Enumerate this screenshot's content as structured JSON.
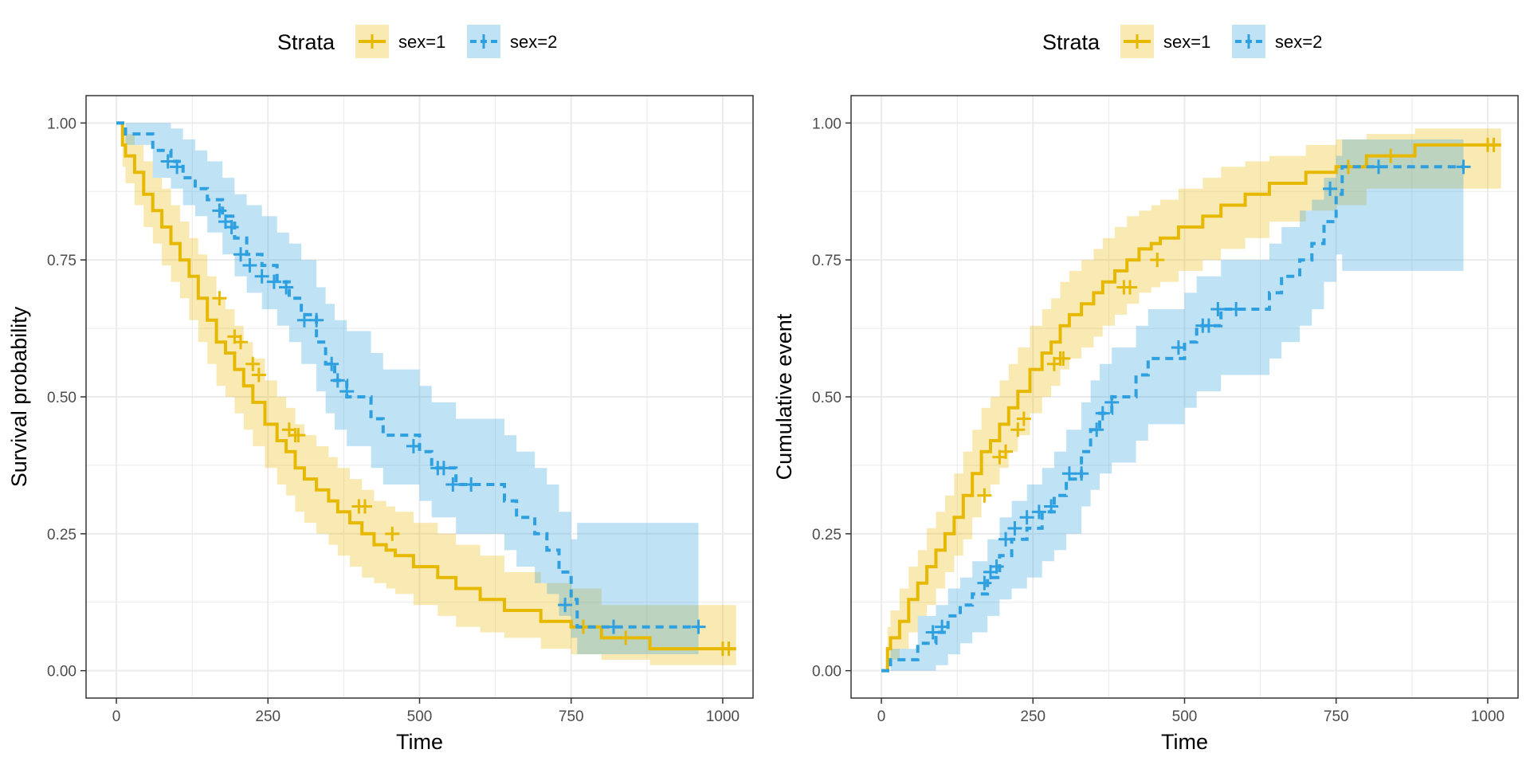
{
  "colors": {
    "sex1": "#E7B800",
    "sex2": "#2E9FDF",
    "grid": "#ebebeb",
    "panel_border": "#333333",
    "tick_text": "#4d4d4d"
  },
  "chart_data": [
    {
      "type": "line",
      "step": true,
      "xlabel": "Time",
      "ylabel": "Survival probability",
      "xlim": [
        -50,
        1050
      ],
      "ylim": [
        -0.05,
        1.05
      ],
      "x_ticks": [
        0,
        250,
        500,
        750,
        1000
      ],
      "x_tick_labels": [
        "0",
        "250",
        "500",
        "750",
        "1000"
      ],
      "y_ticks": [
        0,
        0.25,
        0.5,
        0.75,
        1
      ],
      "y_tick_labels": [
        "0.00",
        "0.25",
        "0.50",
        "0.75",
        "1.00"
      ],
      "grid": true,
      "legend": {
        "title": "Strata",
        "position": "top",
        "entries": [
          "sex=1",
          "sex=2"
        ]
      },
      "series": [
        {
          "name": "sex=1",
          "linestyle": "solid",
          "color": "#E7B800",
          "x": [
            0,
            10,
            15,
            30,
            45,
            60,
            75,
            90,
            105,
            120,
            135,
            150,
            165,
            180,
            195,
            210,
            225,
            245,
            265,
            280,
            295,
            310,
            330,
            350,
            365,
            385,
            405,
            425,
            445,
            460,
            490,
            530,
            560,
            600,
            640,
            700,
            750,
            800,
            880,
            950,
            1022
          ],
          "y": [
            1.0,
            0.96,
            0.94,
            0.91,
            0.87,
            0.84,
            0.81,
            0.78,
            0.75,
            0.72,
            0.68,
            0.64,
            0.6,
            0.58,
            0.55,
            0.52,
            0.49,
            0.45,
            0.42,
            0.4,
            0.37,
            0.35,
            0.33,
            0.31,
            0.29,
            0.27,
            0.25,
            0.23,
            0.22,
            0.21,
            0.19,
            0.17,
            0.15,
            0.13,
            0.11,
            0.09,
            0.08,
            0.06,
            0.04,
            0.04,
            0.04
          ],
          "lower": [
            1.0,
            0.92,
            0.89,
            0.85,
            0.81,
            0.78,
            0.74,
            0.71,
            0.68,
            0.64,
            0.6,
            0.56,
            0.52,
            0.5,
            0.47,
            0.44,
            0.41,
            0.37,
            0.34,
            0.32,
            0.29,
            0.27,
            0.25,
            0.23,
            0.21,
            0.19,
            0.17,
            0.16,
            0.15,
            0.14,
            0.12,
            0.1,
            0.08,
            0.07,
            0.06,
            0.04,
            0.03,
            0.02,
            0.01,
            0.01,
            0.01
          ],
          "upper": [
            1.0,
            0.99,
            0.98,
            0.96,
            0.93,
            0.9,
            0.88,
            0.85,
            0.82,
            0.79,
            0.76,
            0.72,
            0.68,
            0.66,
            0.63,
            0.6,
            0.57,
            0.53,
            0.5,
            0.48,
            0.45,
            0.43,
            0.41,
            0.39,
            0.37,
            0.35,
            0.33,
            0.31,
            0.3,
            0.29,
            0.27,
            0.25,
            0.23,
            0.21,
            0.18,
            0.16,
            0.15,
            0.12,
            0.12,
            0.12,
            0.12
          ],
          "censored_x": [
            170,
            195,
            205,
            225,
            235,
            285,
            295,
            300,
            400,
            410,
            455,
            770,
            840,
            1000,
            1010
          ],
          "censored_y": [
            0.68,
            0.61,
            0.6,
            0.56,
            0.54,
            0.44,
            0.43,
            0.43,
            0.3,
            0.3,
            0.25,
            0.08,
            0.06,
            0.04,
            0.04
          ]
        },
        {
          "name": "sex=2",
          "linestyle": "dashed",
          "color": "#2E9FDF",
          "x": [
            0,
            15,
            60,
            90,
            110,
            130,
            150,
            175,
            195,
            215,
            240,
            265,
            285,
            305,
            330,
            345,
            360,
            380,
            420,
            440,
            500,
            520,
            560,
            640,
            660,
            690,
            710,
            730,
            750,
            760,
            960
          ],
          "y": [
            1.0,
            0.98,
            0.95,
            0.93,
            0.9,
            0.88,
            0.86,
            0.83,
            0.79,
            0.76,
            0.74,
            0.71,
            0.68,
            0.65,
            0.6,
            0.56,
            0.53,
            0.5,
            0.46,
            0.43,
            0.4,
            0.37,
            0.34,
            0.31,
            0.28,
            0.25,
            0.22,
            0.18,
            0.13,
            0.08,
            0.08
          ],
          "lower": [
            1.0,
            0.96,
            0.9,
            0.88,
            0.85,
            0.83,
            0.8,
            0.76,
            0.72,
            0.69,
            0.66,
            0.63,
            0.6,
            0.56,
            0.51,
            0.47,
            0.44,
            0.41,
            0.37,
            0.34,
            0.31,
            0.28,
            0.25,
            0.22,
            0.19,
            0.16,
            0.14,
            0.1,
            0.06,
            0.03,
            0.03
          ],
          "upper": [
            1.0,
            1.0,
            1.0,
            0.99,
            0.97,
            0.95,
            0.93,
            0.9,
            0.87,
            0.85,
            0.83,
            0.8,
            0.78,
            0.75,
            0.7,
            0.67,
            0.64,
            0.62,
            0.58,
            0.55,
            0.52,
            0.49,
            0.46,
            0.43,
            0.4,
            0.37,
            0.34,
            0.29,
            0.24,
            0.27,
            0.27
          ],
          "censored_x": [
            85,
            100,
            170,
            180,
            190,
            205,
            220,
            240,
            260,
            280,
            310,
            330,
            355,
            365,
            380,
            490,
            530,
            540,
            555,
            585,
            740,
            820,
            960
          ],
          "censored_y": [
            0.93,
            0.92,
            0.84,
            0.82,
            0.81,
            0.76,
            0.74,
            0.72,
            0.71,
            0.7,
            0.64,
            0.64,
            0.56,
            0.53,
            0.51,
            0.41,
            0.37,
            0.37,
            0.34,
            0.34,
            0.12,
            0.08,
            0.08
          ]
        }
      ]
    },
    {
      "type": "line",
      "step": true,
      "xlabel": "Time",
      "ylabel": "Cumulative event",
      "xlim": [
        -50,
        1050
      ],
      "ylim": [
        -0.05,
        1.05
      ],
      "x_ticks": [
        0,
        250,
        500,
        750,
        1000
      ],
      "x_tick_labels": [
        "0",
        "250",
        "500",
        "750",
        "1000"
      ],
      "y_ticks": [
        0,
        0.25,
        0.5,
        0.75,
        1
      ],
      "y_tick_labels": [
        "0.00",
        "0.25",
        "0.50",
        "0.75",
        "1.00"
      ],
      "grid": true,
      "legend": {
        "title": "Strata",
        "position": "top",
        "entries": [
          "sex=1",
          "sex=2"
        ]
      },
      "series": [
        {
          "name": "sex=1",
          "linestyle": "solid",
          "color": "#E7B800",
          "x": [
            0,
            10,
            15,
            30,
            45,
            60,
            75,
            90,
            105,
            120,
            135,
            150,
            165,
            180,
            195,
            210,
            225,
            245,
            265,
            280,
            295,
            310,
            330,
            350,
            365,
            385,
            405,
            425,
            445,
            460,
            490,
            530,
            560,
            600,
            640,
            700,
            750,
            800,
            880,
            950,
            1022
          ],
          "y": [
            0.0,
            0.04,
            0.06,
            0.09,
            0.13,
            0.16,
            0.19,
            0.22,
            0.25,
            0.28,
            0.32,
            0.36,
            0.4,
            0.42,
            0.45,
            0.48,
            0.51,
            0.55,
            0.58,
            0.6,
            0.63,
            0.65,
            0.67,
            0.69,
            0.71,
            0.73,
            0.75,
            0.77,
            0.78,
            0.79,
            0.81,
            0.83,
            0.85,
            0.87,
            0.89,
            0.91,
            0.92,
            0.94,
            0.96,
            0.96,
            0.96
          ],
          "lower": [
            0.0,
            0.01,
            0.02,
            0.04,
            0.07,
            0.1,
            0.12,
            0.15,
            0.18,
            0.21,
            0.24,
            0.28,
            0.32,
            0.34,
            0.37,
            0.4,
            0.43,
            0.47,
            0.5,
            0.52,
            0.55,
            0.57,
            0.59,
            0.61,
            0.63,
            0.65,
            0.67,
            0.69,
            0.7,
            0.71,
            0.73,
            0.75,
            0.77,
            0.79,
            0.82,
            0.84,
            0.85,
            0.88,
            0.88,
            0.88,
            0.88
          ],
          "upper": [
            0.0,
            0.08,
            0.11,
            0.15,
            0.19,
            0.22,
            0.26,
            0.29,
            0.32,
            0.36,
            0.4,
            0.44,
            0.48,
            0.5,
            0.53,
            0.56,
            0.59,
            0.63,
            0.66,
            0.68,
            0.71,
            0.73,
            0.75,
            0.77,
            0.79,
            0.81,
            0.83,
            0.84,
            0.85,
            0.86,
            0.88,
            0.9,
            0.92,
            0.93,
            0.94,
            0.96,
            0.97,
            0.98,
            0.99,
            0.99,
            0.99
          ],
          "censored_x": [
            170,
            195,
            205,
            225,
            235,
            285,
            295,
            300,
            400,
            410,
            455,
            770,
            840,
            1000,
            1010
          ],
          "censored_y": [
            0.32,
            0.39,
            0.4,
            0.44,
            0.46,
            0.56,
            0.57,
            0.57,
            0.7,
            0.7,
            0.75,
            0.92,
            0.94,
            0.96,
            0.96
          ]
        },
        {
          "name": "sex=2",
          "linestyle": "dashed",
          "color": "#2E9FDF",
          "x": [
            0,
            15,
            60,
            90,
            110,
            130,
            150,
            175,
            195,
            215,
            240,
            265,
            285,
            305,
            330,
            345,
            360,
            380,
            420,
            440,
            500,
            520,
            560,
            640,
            660,
            690,
            710,
            730,
            750,
            760,
            960
          ],
          "y": [
            0.0,
            0.02,
            0.05,
            0.07,
            0.1,
            0.12,
            0.14,
            0.17,
            0.21,
            0.24,
            0.26,
            0.29,
            0.32,
            0.35,
            0.4,
            0.44,
            0.47,
            0.5,
            0.54,
            0.57,
            0.6,
            0.63,
            0.66,
            0.69,
            0.72,
            0.75,
            0.78,
            0.82,
            0.87,
            0.92,
            0.92
          ],
          "lower": [
            0.0,
            0.0,
            0.0,
            0.01,
            0.03,
            0.05,
            0.07,
            0.1,
            0.13,
            0.15,
            0.17,
            0.2,
            0.22,
            0.25,
            0.3,
            0.33,
            0.36,
            0.38,
            0.42,
            0.45,
            0.48,
            0.51,
            0.54,
            0.57,
            0.6,
            0.63,
            0.66,
            0.71,
            0.76,
            0.73,
            0.73
          ],
          "upper": [
            0.0,
            0.04,
            0.1,
            0.12,
            0.15,
            0.17,
            0.2,
            0.24,
            0.28,
            0.31,
            0.34,
            0.37,
            0.4,
            0.44,
            0.49,
            0.53,
            0.56,
            0.59,
            0.63,
            0.66,
            0.69,
            0.72,
            0.75,
            0.78,
            0.81,
            0.84,
            0.86,
            0.9,
            0.94,
            0.97,
            0.97
          ],
          "censored_x": [
            85,
            100,
            170,
            180,
            190,
            205,
            220,
            240,
            260,
            280,
            310,
            330,
            355,
            365,
            380,
            490,
            530,
            540,
            555,
            585,
            740,
            820,
            960
          ],
          "censored_y": [
            0.07,
            0.08,
            0.16,
            0.18,
            0.19,
            0.24,
            0.26,
            0.28,
            0.29,
            0.3,
            0.36,
            0.36,
            0.44,
            0.47,
            0.49,
            0.59,
            0.63,
            0.63,
            0.66,
            0.66,
            0.88,
            0.92,
            0.92
          ]
        }
      ]
    }
  ]
}
